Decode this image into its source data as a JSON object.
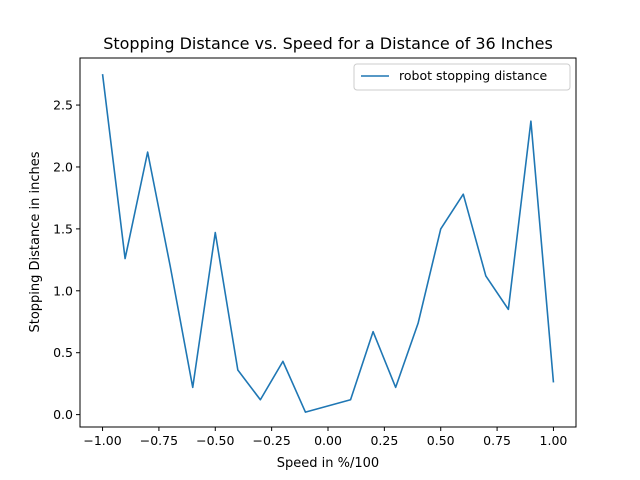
{
  "chart_data": {
    "type": "line",
    "title": "Stopping Distance vs. Speed for a Distance of 36 Inches",
    "xlabel": "Speed in %/100",
    "ylabel": "Stopping Distance in inches",
    "xlim": [
      -1.1,
      1.1
    ],
    "ylim": [
      -0.1,
      2.88
    ],
    "xticks": [
      -1.0,
      -0.75,
      -0.5,
      -0.25,
      0.0,
      0.25,
      0.5,
      0.75,
      1.0
    ],
    "xtick_labels": [
      "−1.00",
      "−0.75",
      "−0.50",
      "−0.25",
      "0.00",
      "0.25",
      "0.50",
      "0.75",
      "1.00"
    ],
    "yticks": [
      0.0,
      0.5,
      1.0,
      1.5,
      2.0,
      2.5
    ],
    "ytick_labels": [
      "0.0",
      "0.5",
      "1.0",
      "1.5",
      "2.0",
      "2.5"
    ],
    "grid": false,
    "legend_position": "top-right",
    "series": [
      {
        "name": "robot stopping distance",
        "color": "#1f77b4",
        "x": [
          -1.0,
          -0.9,
          -0.8,
          -0.7,
          -0.6,
          -0.5,
          -0.4,
          -0.3,
          -0.2,
          -0.1,
          0.1,
          0.2,
          0.3,
          0.4,
          0.5,
          0.6,
          0.7,
          0.8,
          0.9,
          1.0
        ],
        "y": [
          2.75,
          1.26,
          2.12,
          1.2,
          0.22,
          1.47,
          0.36,
          0.12,
          0.43,
          0.02,
          0.12,
          0.67,
          0.22,
          0.74,
          1.5,
          1.78,
          1.12,
          0.85,
          2.37,
          0.26
        ]
      }
    ]
  }
}
